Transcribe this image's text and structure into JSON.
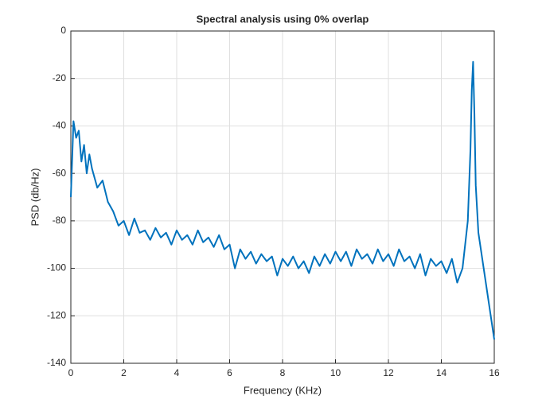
{
  "chart_data": {
    "type": "line",
    "title": "Spectral analysis using 0% overlap",
    "x_label": "Frequency (KHz)",
    "y_label": "PSD (db/Hz)",
    "x": [
      0,
      0.1,
      0.2,
      0.3,
      0.4,
      0.5,
      0.6,
      0.7,
      0.8,
      0.9,
      1.0,
      1.2,
      1.4,
      1.6,
      1.8,
      2.0,
      2.2,
      2.4,
      2.6,
      2.8,
      3.0,
      3.2,
      3.4,
      3.6,
      3.8,
      4.0,
      4.2,
      4.4,
      4.6,
      4.8,
      5.0,
      5.2,
      5.4,
      5.6,
      5.8,
      6.0,
      6.2,
      6.4,
      6.6,
      6.8,
      7.0,
      7.2,
      7.4,
      7.6,
      7.8,
      8.0,
      8.2,
      8.4,
      8.6,
      8.8,
      9.0,
      9.2,
      9.4,
      9.6,
      9.8,
      10.0,
      10.2,
      10.4,
      10.6,
      10.8,
      11.0,
      11.2,
      11.4,
      11.6,
      11.8,
      12.0,
      12.2,
      12.4,
      12.6,
      12.8,
      13.0,
      13.2,
      13.4,
      13.6,
      13.8,
      14.0,
      14.2,
      14.4,
      14.6,
      14.8,
      15.0,
      15.1,
      15.15,
      15.2,
      15.25,
      15.3,
      15.4,
      15.6,
      15.8,
      16.0
    ],
    "values": [
      -70,
      -38,
      -45,
      -42,
      -55,
      -48,
      -60,
      -52,
      -58,
      -62,
      -66,
      -63,
      -72,
      -76,
      -82,
      -80,
      -86,
      -79,
      -85,
      -84,
      -88,
      -83,
      -87,
      -85,
      -90,
      -84,
      -88,
      -86,
      -90,
      -84,
      -89,
      -87,
      -91,
      -86,
      -92,
      -90,
      -100,
      -92,
      -96,
      -93,
      -98,
      -94,
      -97,
      -95,
      -103,
      -96,
      -99,
      -95,
      -100,
      -97,
      -102,
      -95,
      -99,
      -94,
      -98,
      -93,
      -97,
      -93,
      -99,
      -92,
      -96,
      -94,
      -98,
      -92,
      -97,
      -94,
      -99,
      -92,
      -97,
      -95,
      -100,
      -94,
      -103,
      -96,
      -99,
      -97,
      -102,
      -96,
      -106,
      -100,
      -80,
      -50,
      -25,
      -13,
      -35,
      -65,
      -85,
      -100,
      -115,
      -130
    ],
    "color": "#0072bd",
    "xlim": [
      0,
      16
    ],
    "xticks": [
      0,
      2,
      4,
      6,
      8,
      10,
      12,
      14,
      16
    ],
    "ylim": [
      -140,
      0
    ],
    "yticks": [
      -140,
      -120,
      -100,
      -80,
      -60,
      -40,
      -20,
      0
    ],
    "grid": true
  }
}
